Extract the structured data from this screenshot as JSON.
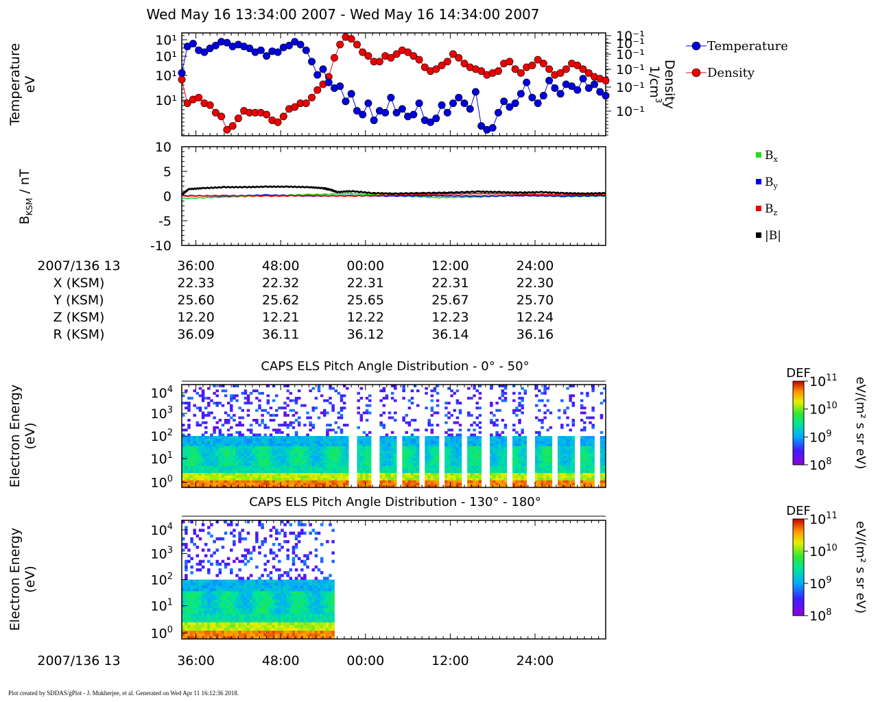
{
  "title": "Wed May 16 13:34:00 2007 - Wed May 16 14:34:00 2007",
  "footer": "Plot created by SDDAS/gPlot - J. Mukherjee, et al.  Generated on Wed Apr 11 16:12:36 2018.",
  "panel1": {
    "ylabel_left": [
      "Temperature",
      "eV"
    ],
    "ylabel_right": [
      "Density",
      "1/cm"
    ],
    "ylabel_right_sup": "3",
    "left_ticks": [
      "10¹",
      "10¹",
      "10¹",
      "10¹"
    ],
    "right_ticks": [
      "10⁻¹",
      "10⁻¹",
      "10⁻¹",
      "10⁻¹",
      "10⁻¹",
      "10⁻¹"
    ],
    "legend": [
      {
        "label": "Temperature",
        "color": "#0000dd"
      },
      {
        "label": "Density",
        "color": "#ee0000"
      }
    ]
  },
  "panel2": {
    "ylabel_main": "B",
    "ylabel_sub": "KSM",
    "ylabel_tail": " / nT",
    "ticks": [
      "10",
      "5",
      "0",
      "-5",
      "-10"
    ],
    "legend": [
      {
        "label": "B",
        "sub": "x",
        "color": "#22dd22"
      },
      {
        "label": "B",
        "sub": "y",
        "color": "#0000ee"
      },
      {
        "label": "B",
        "sub": "z",
        "color": "#ee0000"
      },
      {
        "label": "|B|",
        "sub": "",
        "color": "#000000"
      }
    ]
  },
  "ephemeris": {
    "row_labels": [
      "2007/136 13",
      "X (KSM)",
      "Y (KSM)",
      "Z (KSM)",
      "R (KSM)"
    ],
    "columns": [
      [
        "36:00",
        "22.33",
        "25.60",
        "12.20",
        "36.09"
      ],
      [
        "48:00",
        "22.32",
        "25.62",
        "12.21",
        "36.11"
      ],
      [
        "00:00",
        "22.31",
        "25.65",
        "12.22",
        "36.12"
      ],
      [
        "12:00",
        "22.31",
        "25.67",
        "12.23",
        "36.14"
      ],
      [
        "24:00",
        "22.30",
        "25.70",
        "12.24",
        "36.16"
      ]
    ]
  },
  "panel3": {
    "title": "CAPS ELS Pitch Angle Distribution - 0° - 50°",
    "ylabel": [
      "Electron Energy",
      "(eV)"
    ],
    "cbar_title": "DEF",
    "cbar_unit": "eV/(m² s sr eV)"
  },
  "panel4": {
    "title": "CAPS ELS Pitch Angle Distribution - 130° - 180°",
    "ylabel": [
      "Electron Energy",
      "(eV)"
    ],
    "cbar_title": "DEF",
    "cbar_unit": "eV/(m² s sr eV)"
  },
  "bottom_axis": {
    "label": "2007/136 13",
    "ticks": [
      "36:00",
      "48:00",
      "00:00",
      "12:00",
      "24:00"
    ]
  },
  "colorbar_ticks": [
    {
      "base": "10",
      "exp": "11"
    },
    {
      "base": "10",
      "exp": "10"
    },
    {
      "base": "10",
      "exp": "9"
    },
    {
      "base": "10",
      "exp": "8"
    }
  ],
  "energy_ticks": [
    {
      "base": "10",
      "exp": "4"
    },
    {
      "base": "10",
      "exp": "3"
    },
    {
      "base": "10",
      "exp": "2"
    },
    {
      "base": "10",
      "exp": "1"
    },
    {
      "base": "10",
      "exp": "0"
    }
  ],
  "chart_data": [
    {
      "type": "line",
      "title": "",
      "x_unit": "minutes after 13:34:00",
      "xlim": [
        0,
        60
      ],
      "series": [
        {
          "name": "Temperature",
          "color": "#0000dd",
          "x": [
            0,
            0.8,
            1.6,
            2.4,
            3.2,
            4,
            4.8,
            5.6,
            6.4,
            7.2,
            8,
            8.8,
            9.6,
            10.4,
            11.2,
            12,
            12.8,
            13.6,
            14.4,
            15.2,
            16,
            16.8,
            17.6,
            18.4,
            19.2,
            20,
            20.8,
            21.6,
            22.4,
            23.2,
            24,
            24.8,
            25.6,
            26.4,
            27.2,
            28,
            28.8,
            29.6,
            30.4,
            31.2,
            32,
            32.8,
            33.6,
            34.4,
            35.2,
            36,
            36.8,
            37.6,
            38.4,
            39.2,
            40,
            40.8,
            41.6,
            42.4,
            43.2,
            44,
            44.8,
            45.6,
            46.4,
            47.2,
            48,
            48.8,
            49.6,
            50.4,
            51.2,
            52,
            52.8,
            53.6,
            54.4,
            55.2,
            56,
            56.8,
            57.6,
            58.4,
            59.2,
            60
          ],
          "y": [
            0.62,
            0.9,
            0.93,
            0.86,
            0.84,
            0.88,
            0.91,
            0.95,
            0.94,
            0.9,
            0.92,
            0.9,
            0.88,
            0.84,
            0.86,
            0.8,
            0.85,
            0.84,
            0.89,
            0.91,
            0.95,
            0.92,
            0.86,
            0.74,
            0.6,
            0.66,
            0.52,
            0.46,
            0.48,
            0.32,
            0.4,
            0.22,
            0.18,
            0.3,
            0.12,
            0.22,
            0.2,
            0.36,
            0.2,
            0.24,
            0.16,
            0.18,
            0.3,
            0.12,
            0.1,
            0.14,
            0.28,
            0.2,
            0.3,
            0.36,
            0.3,
            0.24,
            0.42,
            0.06,
            0.02,
            0.04,
            0.2,
            0.32,
            0.26,
            0.3,
            0.4,
            0.52,
            0.36,
            0.3,
            0.38,
            0.54,
            0.46,
            0.4,
            0.5,
            0.48,
            0.44,
            0.56,
            0.46,
            0.5,
            0.42,
            0.38
          ]
        },
        {
          "name": "Density",
          "color": "#ee0000",
          "x": [
            0,
            0.8,
            1.6,
            2.4,
            3.2,
            4,
            4.8,
            5.6,
            6.4,
            7.2,
            8,
            8.8,
            9.6,
            10.4,
            11.2,
            12,
            12.8,
            13.6,
            14.4,
            15.2,
            16,
            16.8,
            17.6,
            18.4,
            19.2,
            20,
            20.8,
            21.6,
            22.4,
            23.2,
            24,
            24.8,
            25.6,
            26.4,
            27.2,
            28,
            28.8,
            29.6,
            30.4,
            31.2,
            32,
            32.8,
            33.6,
            34.4,
            35.2,
            36,
            36.8,
            37.6,
            38.4,
            39.2,
            40,
            40.8,
            41.6,
            42.4,
            43.2,
            44,
            44.8,
            45.6,
            46.4,
            47.2,
            48,
            48.8,
            49.6,
            50.4,
            51.2,
            52,
            52.8,
            53.6,
            54.4,
            55.2,
            56,
            56.8,
            57.6,
            58.4,
            59.2,
            60
          ],
          "y": [
            0.55,
            0.3,
            0.34,
            0.36,
            0.3,
            0.28,
            0.2,
            0.16,
            0.02,
            0.06,
            0.14,
            0.22,
            0.2,
            0.2,
            0.2,
            0.18,
            0.12,
            0.1,
            0.16,
            0.24,
            0.26,
            0.3,
            0.3,
            0.36,
            0.44,
            0.5,
            0.58,
            0.78,
            0.92,
            1,
            0.98,
            0.92,
            0.84,
            0.8,
            0.74,
            0.74,
            0.8,
            0.78,
            0.82,
            0.86,
            0.84,
            0.8,
            0.76,
            0.68,
            0.64,
            0.66,
            0.7,
            0.74,
            0.82,
            0.78,
            0.72,
            0.68,
            0.66,
            0.64,
            0.6,
            0.62,
            0.64,
            0.72,
            0.74,
            0.66,
            0.62,
            0.68,
            0.7,
            0.76,
            0.72,
            0.66,
            0.6,
            0.62,
            0.66,
            0.72,
            0.7,
            0.66,
            0.62,
            0.58,
            0.56,
            0.54
          ]
        }
      ]
    },
    {
      "type": "line",
      "title": "",
      "x_unit": "minutes after 13:34:00",
      "xlim": [
        0,
        60
      ],
      "ylabel": "B KSM / nT",
      "ylim": [
        -10,
        10
      ],
      "series": [
        {
          "name": "Bx",
          "color": "#22dd22",
          "x": [
            0,
            6,
            12,
            18,
            24,
            30,
            36,
            42,
            48,
            54,
            60
          ],
          "y": [
            -0.5,
            -0.2,
            0.1,
            0.3,
            0.5,
            0.1,
            -0.3,
            -0.2,
            0.2,
            -0.1,
            0.0
          ]
        },
        {
          "name": "By",
          "color": "#0000ee",
          "x": [
            0,
            6,
            12,
            18,
            24,
            30,
            36,
            42,
            48,
            54,
            60
          ],
          "y": [
            0.1,
            0.0,
            0.2,
            0.0,
            0.1,
            0.0,
            0.1,
            0.0,
            0.1,
            0.0,
            0.1
          ]
        },
        {
          "name": "Bz",
          "color": "#ee0000",
          "x": [
            0,
            6,
            12,
            18,
            24,
            30,
            36,
            42,
            48,
            54,
            60
          ],
          "y": [
            0.0,
            0.1,
            0.0,
            0.1,
            0.0,
            0.2,
            0.4,
            0.5,
            0.4,
            0.3,
            0.3
          ]
        },
        {
          "name": "|B|",
          "color": "#000000",
          "x": [
            0,
            1,
            3,
            6,
            9,
            12,
            15,
            18,
            20,
            21,
            22,
            24,
            27,
            30,
            34,
            38,
            42,
            45,
            48,
            51,
            54,
            57,
            60
          ],
          "y": [
            0.3,
            1.4,
            1.6,
            1.8,
            1.8,
            1.9,
            1.9,
            1.8,
            1.6,
            1.3,
            0.8,
            1.0,
            0.6,
            0.5,
            0.6,
            0.7,
            0.9,
            0.8,
            0.7,
            0.8,
            0.6,
            0.5,
            0.6
          ]
        }
      ]
    },
    {
      "type": "heatmap",
      "title": "CAPS ELS Pitch Angle Distribution - 0° - 50°",
      "ylabel": "Electron Energy (eV)",
      "y_scale": "log",
      "ylim": [
        1,
        20000
      ],
      "colorbar": {
        "label": "DEF",
        "unit": "eV/(m² s sr eV)",
        "range": [
          100000000.0,
          100000000000.0
        ],
        "scale": "log"
      }
    },
    {
      "type": "heatmap",
      "title": "CAPS ELS Pitch Angle Distribution - 130° - 180°",
      "ylabel": "Electron Energy (eV)",
      "y_scale": "log",
      "ylim": [
        1,
        20000
      ],
      "colorbar": {
        "label": "DEF",
        "unit": "eV/(m² s sr eV)",
        "range": [
          100000000.0,
          100000000000.0
        ],
        "scale": "log"
      }
    }
  ]
}
